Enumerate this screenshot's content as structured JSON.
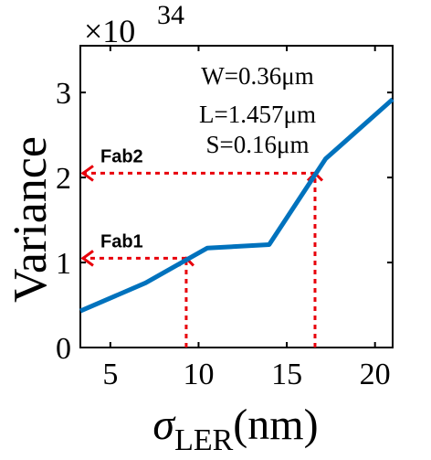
{
  "chart_data": {
    "type": "line",
    "exponent_label": "×10",
    "exponent_power": "34",
    "ylabel": "Variance",
    "xlabel_symbol": "σ",
    "xlabel_subscript": "LER",
    "xlabel_unit": "(nm)",
    "xlim": [
      3.3,
      21
    ],
    "ylim": [
      0,
      3.55
    ],
    "x_ticks": [
      5,
      10,
      15,
      20
    ],
    "y_ticks": [
      0,
      1,
      2,
      3
    ],
    "x": [
      3.3,
      7,
      10.5,
      14,
      17.2,
      21
    ],
    "y": [
      0.43,
      0.76,
      1.17,
      1.21,
      2.22,
      2.92
    ],
    "line_color": "#0072BD",
    "annotation": {
      "lines": [
        "W=0.36μm",
        "L=1.457μm",
        "S=0.16μm"
      ]
    },
    "markers": [
      {
        "label": "Fab1",
        "x": 9.3,
        "y": 1.05
      },
      {
        "label": "Fab2",
        "x": 16.6,
        "y": 2.05
      }
    ],
    "marker_color": "#E8000B",
    "grid": false
  }
}
